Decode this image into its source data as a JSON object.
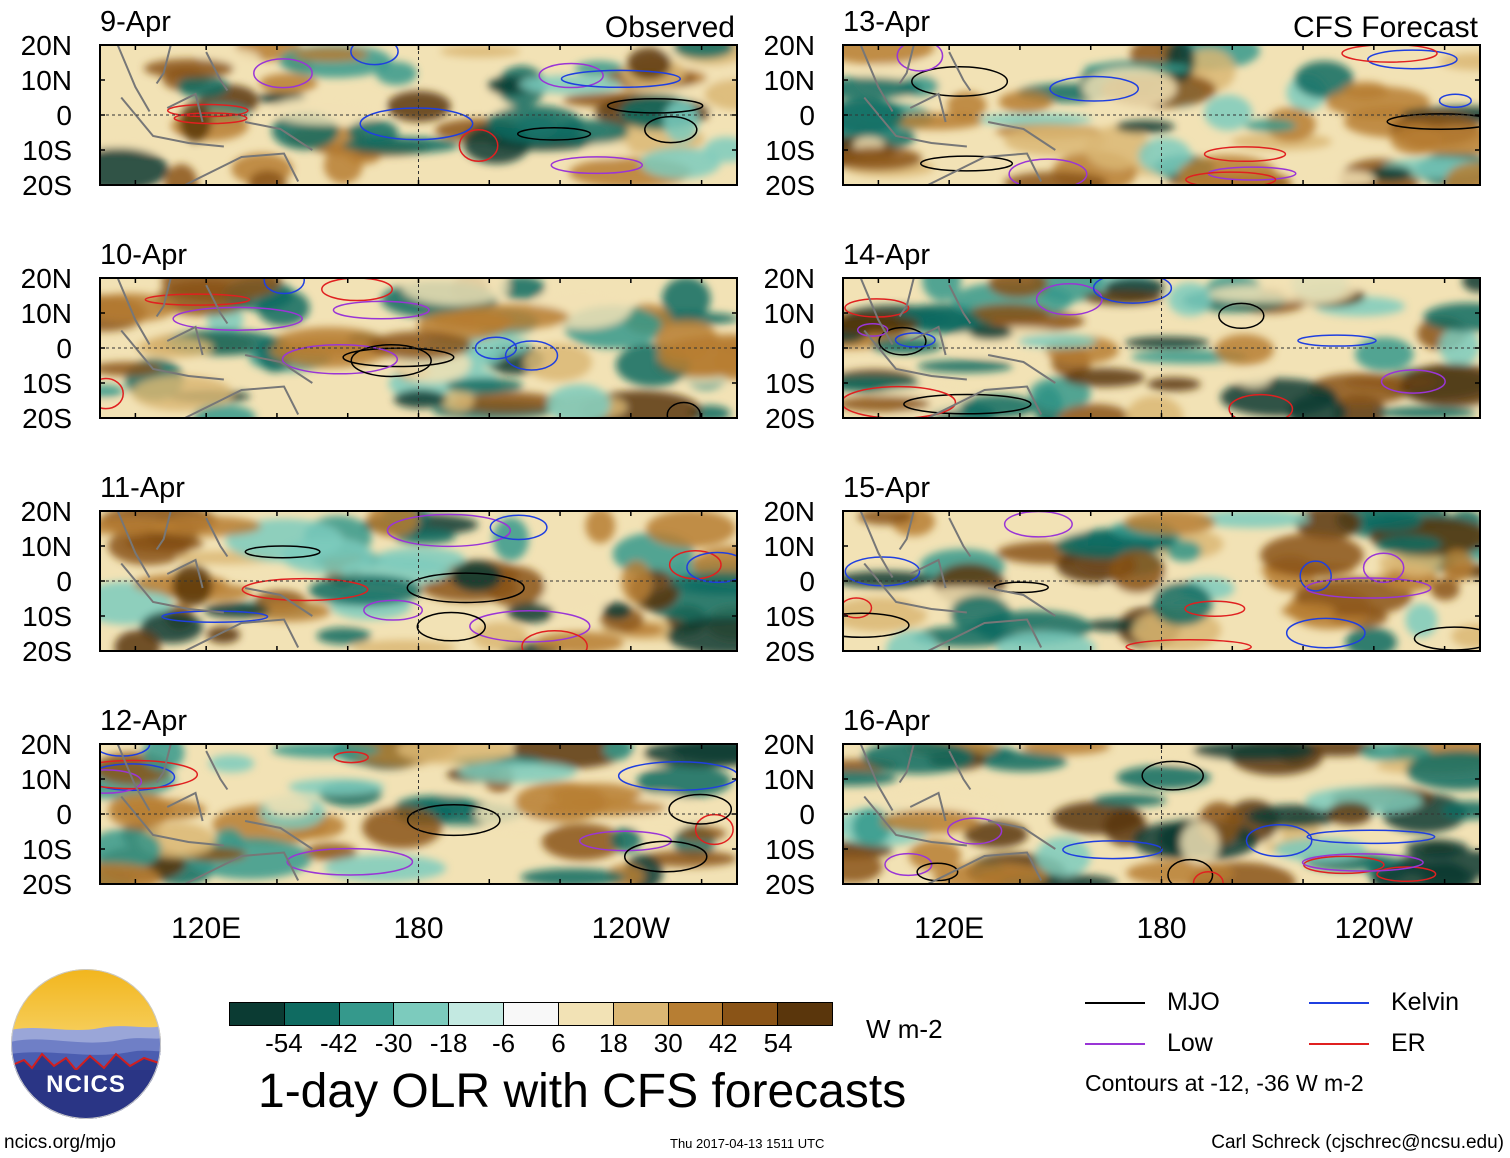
{
  "chart_data": {
    "type": "heatmap",
    "title": "1-day OLR with CFS forecasts",
    "variable": "OLR anomaly",
    "units": "W m-2",
    "column_titles": [
      "Observed",
      "CFS Forecast"
    ],
    "panels": [
      {
        "date": "9-Apr",
        "source": "Observed"
      },
      {
        "date": "10-Apr",
        "source": "Observed"
      },
      {
        "date": "11-Apr",
        "source": "Observed"
      },
      {
        "date": "12-Apr",
        "source": "Observed"
      },
      {
        "date": "13-Apr",
        "source": "CFS Forecast"
      },
      {
        "date": "14-Apr",
        "source": "CFS Forecast"
      },
      {
        "date": "15-Apr",
        "source": "CFS Forecast"
      },
      {
        "date": "16-Apr",
        "source": "CFS Forecast"
      }
    ],
    "y_tick_labels": [
      "20N",
      "10N",
      "0",
      "10S",
      "20S"
    ],
    "x_tick_labels": [
      "120E",
      "180",
      "120W"
    ],
    "lat_range": [
      -20,
      20
    ],
    "lon_range": [
      90,
      270
    ],
    "colorbar": {
      "levels": [
        "-54",
        "-42",
        "-30",
        "-18",
        "-6",
        "6",
        "18",
        "30",
        "42",
        "54"
      ],
      "colors": [
        "#0b3b33",
        "#0f6b61",
        "#35998c",
        "#7ccbbd",
        "#c3e9e1",
        "#f8f8f8",
        "#f2e2b5",
        "#dbb774",
        "#b77e33",
        "#8a5417",
        "#5a360c"
      ]
    },
    "contour_legend": [
      {
        "label": "MJO",
        "color": "#000000"
      },
      {
        "label": "Kelvin",
        "color": "#1f3fe0"
      },
      {
        "label": "Low",
        "color": "#9a35d6"
      },
      {
        "label": "ER",
        "color": "#e02020"
      }
    ],
    "contour_note": "Contours at -12, -36 W m-2"
  },
  "footer": {
    "website": "ncics.org/mjo",
    "timestamp": "Thu 2017-04-13 1511 UTC",
    "credit": "Carl Schreck (cjschrec@ncsu.edu)"
  },
  "logo": {
    "text": "NCICS"
  }
}
